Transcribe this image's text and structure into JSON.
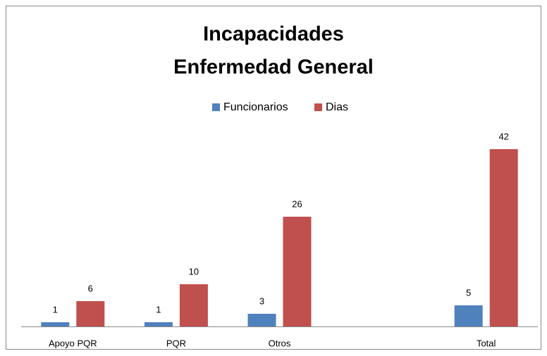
{
  "chart_data": {
    "type": "bar",
    "title": [
      "Incapacidades",
      "Enfermedad General"
    ],
    "categories": [
      "Apoyo PQR",
      "PQR",
      "Otros",
      null,
      "Total"
    ],
    "series": [
      {
        "name": "Funcionarios",
        "color": "#4f81bd",
        "values": [
          1,
          1,
          3,
          null,
          5
        ]
      },
      {
        "name": "Dias",
        "color": "#c0504d",
        "values": [
          6,
          10,
          26,
          null,
          42
        ]
      }
    ],
    "ylim": [
      0,
      45
    ],
    "legend": "top"
  }
}
